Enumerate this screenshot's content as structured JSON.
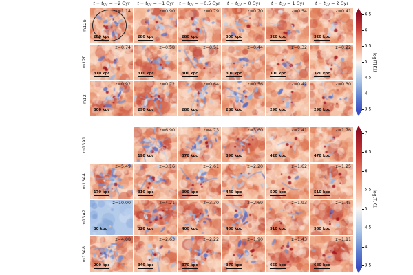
{
  "header": {
    "columns": [
      {
        "pre": "t − t",
        "sub": "CV",
        "post": " = −2 Gyr"
      },
      {
        "pre": "t − t",
        "sub": "CV",
        "post": " = −1 Gyr"
      },
      {
        "pre": "t − t",
        "sub": "CV",
        "post": " = −0.5 Gyr"
      },
      {
        "pre": "t − t",
        "sub": "CV",
        "post": " = 0 Gyr"
      },
      {
        "pre": "t − t",
        "sub": "CV",
        "post": " = 1 Gyr"
      },
      {
        "pre": "t − t",
        "sub": "CV",
        "post": " = 2 Gyr"
      }
    ]
  },
  "groups": [
    {
      "name": "m12",
      "colorbar": {
        "label": "log(T[K])",
        "ticks": [
          "6.5",
          "6",
          "5.5",
          "5",
          "4.5",
          "4",
          "3.5"
        ]
      },
      "rows": [
        {
          "label": "m12b",
          "panels": [
            {
              "z": "z=1.14",
              "scale": "280 kpc",
              "b": 0.35,
              "d": 0.45,
              "circle": true
            },
            {
              "z": "z=0.90",
              "scale": "280 kpc",
              "b": 0.3,
              "d": 0.4
            },
            {
              "z": "z=0.79",
              "scale": "280 kpc",
              "b": 0.28,
              "d": 0.42
            },
            {
              "z": "z=0.70",
              "scale": "300 kpc",
              "b": 0.22,
              "d": 0.5
            },
            {
              "z": "z=0.54",
              "scale": "320 kpc",
              "b": 0.1,
              "d": 0.45
            },
            {
              "z": "z=0.41",
              "scale": "320 kpc",
              "b": 0.08,
              "d": 0.42
            }
          ]
        },
        {
          "label": "m12f",
          "panels": [
            {
              "z": "z=0.74",
              "scale": "310 kpc",
              "b": 0.15,
              "d": 0.5
            },
            {
              "z": "z=0.58",
              "scale": "310 kpc",
              "b": 0.2,
              "d": 0.62
            },
            {
              "z": "z=0.51",
              "scale": "300 kpc",
              "b": 0.25,
              "d": 0.45
            },
            {
              "z": "z=0.44",
              "scale": "300 kpc",
              "b": 0.28,
              "d": 0.4
            },
            {
              "z": "z=0.32",
              "scale": "300 kpc",
              "b": 0.15,
              "d": 0.42
            },
            {
              "z": "z=0.22",
              "scale": "320 kpc",
              "b": 0.1,
              "d": 0.4
            }
          ]
        },
        {
          "label": "m12i",
          "panels": [
            {
              "z": "z=0.92",
              "scale": "300 kpc",
              "b": 0.3,
              "d": 0.5
            },
            {
              "z": "z=0.72",
              "scale": "290 kpc",
              "b": 0.38,
              "d": 0.6
            },
            {
              "z": "z=0.64",
              "scale": "280 kpc",
              "b": 0.42,
              "d": 0.45
            },
            {
              "z": "z=0.56",
              "scale": "280 kpc",
              "b": 0.38,
              "d": 0.4
            },
            {
              "z": "z=0.42",
              "scale": "290 kpc",
              "b": 0.15,
              "d": 0.4
            },
            {
              "z": "z=0.30",
              "scale": "290 kpc",
              "b": 0.15,
              "d": 0.45
            }
          ]
        }
      ]
    },
    {
      "name": "m13",
      "colorbar": {
        "label": "log(T[K])",
        "ticks": [
          "7",
          "6.5",
          "6",
          "5.5",
          "5",
          "4.5",
          "4",
          "3.5"
        ]
      },
      "rows": [
        {
          "label": "m13A1",
          "panels": [
            null,
            {
              "z": "z=6.90",
              "scale": "190 kpc",
              "b": 0.5,
              "d": 0.5
            },
            {
              "z": "z=4.73",
              "scale": "370 kpc",
              "b": 0.42,
              "d": 0.55
            },
            {
              "z": "z=3.60",
              "scale": "390 kpc",
              "b": 0.28,
              "d": 0.7
            },
            {
              "z": "z=2.41",
              "scale": "420 kpc",
              "b": 0.1,
              "d": 0.42
            },
            {
              "z": "z=1.76",
              "scale": "470 kpc",
              "b": 0.06,
              "d": 0.4
            }
          ]
        },
        {
          "label": "m13A4",
          "panels": [
            {
              "z": "z=5.49",
              "scale": "170 kpc",
              "b": 0.55,
              "d": 0.38
            },
            {
              "z": "z=3.16",
              "scale": "310 kpc",
              "b": 0.35,
              "d": 0.5
            },
            {
              "z": "z=2.61",
              "scale": "390 kpc",
              "b": 0.3,
              "d": 0.52
            },
            {
              "z": "z=2.20",
              "scale": "440 kpc",
              "b": 0.22,
              "d": 0.45
            },
            {
              "z": "z=1.62",
              "scale": "500 kpc",
              "b": 0.1,
              "d": 0.5
            },
            {
              "z": "z=1.25",
              "scale": "510 kpc",
              "b": 0.08,
              "d": 0.55
            }
          ]
        },
        {
          "label": "m13A2",
          "panels": [
            {
              "z": "z=10.00",
              "scale": "30 kpc",
              "b": 0.97,
              "d": 0.05
            },
            {
              "z": "z=4.21",
              "scale": "320 kpc",
              "b": 0.35,
              "d": 0.7
            },
            {
              "z": "z=3.30",
              "scale": "400 kpc",
              "b": 0.3,
              "d": 0.75
            },
            {
              "z": "z=2.69",
              "scale": "460 kpc",
              "b": 0.3,
              "d": 0.5
            },
            {
              "z": "z=1.93",
              "scale": "510 kpc",
              "b": 0.1,
              "d": 0.55
            },
            {
              "z": "z=1.45",
              "scale": "560 kpc",
              "b": 0.07,
              "d": 0.6
            }
          ]
        },
        {
          "label": "m13A8",
          "panels": [
            {
              "z": "z=4.08",
              "scale": "200 kpc",
              "b": 0.55,
              "d": 0.4
            },
            {
              "z": "z=2.63",
              "scale": "340 kpc",
              "b": 0.35,
              "d": 0.5
            },
            {
              "z": "z=2.22",
              "scale": "370 kpc",
              "b": 0.25,
              "d": 0.45
            },
            {
              "z": "z=1.90",
              "scale": "370 kpc",
              "b": 0.2,
              "d": 0.55
            },
            {
              "z": "z=1.43",
              "scale": "650 kpc",
              "b": 0.05,
              "d": 0.65
            },
            {
              "z": "z=1.11",
              "scale": "680 kpc",
              "b": 0.05,
              "d": 0.7
            }
          ]
        }
      ]
    }
  ],
  "colors": {
    "cmap_top": "#8f0d22",
    "cmap_red": "#c73a34",
    "cmap_salmon": "#ee9677",
    "cmap_pink": "#f8cdb7",
    "cmap_white": "#f7f5f2",
    "cmap_lightblue": "#a9c4e6",
    "cmap_blue": "#5d7fce",
    "cmap_bottom": "#3b4cc0",
    "annotation": "#222222",
    "text": "#111111"
  },
  "chart_data": {
    "type": "heatmap",
    "columns_time_offsets_gyr": [
      -2,
      -1,
      -0.5,
      0,
      1,
      2
    ],
    "column_header_template": "t − t_CV = {offset} Gyr",
    "rows": [
      "m12b",
      "m12f",
      "m12i",
      "m13A1",
      "m13A4",
      "m13A2",
      "m13A8"
    ],
    "redshifts_by_row": {
      "m12b": [
        1.14,
        0.9,
        0.79,
        0.7,
        0.54,
        0.41
      ],
      "m12f": [
        0.74,
        0.58,
        0.51,
        0.44,
        0.32,
        0.22
      ],
      "m12i": [
        0.92,
        0.72,
        0.64,
        0.56,
        0.42,
        0.3
      ],
      "m13A1": [
        null,
        6.9,
        4.73,
        3.6,
        2.41,
        1.76
      ],
      "m13A4": [
        5.49,
        3.16,
        2.61,
        2.2,
        1.62,
        1.25
      ],
      "m13A2": [
        10.0,
        4.21,
        3.3,
        2.69,
        1.93,
        1.45
      ],
      "m13A8": [
        4.08,
        2.63,
        2.22,
        1.9,
        1.43,
        1.11
      ]
    },
    "scalebar_kpc_by_row": {
      "m12b": [
        280,
        280,
        280,
        300,
        320,
        320
      ],
      "m12f": [
        310,
        310,
        300,
        300,
        300,
        320
      ],
      "m12i": [
        300,
        290,
        280,
        280,
        290,
        290
      ],
      "m13A1": [
        null,
        190,
        370,
        390,
        420,
        470
      ],
      "m13A4": [
        170,
        310,
        390,
        440,
        500,
        510
      ],
      "m13A2": [
        30,
        320,
        400,
        460,
        510,
        560
      ],
      "m13A8": [
        200,
        340,
        370,
        370,
        650,
        680
      ]
    },
    "colorbars": [
      {
        "applies_to_rows": [
          "m12b",
          "m12f",
          "m12i"
        ],
        "label": "log(T[K])",
        "tick_values": [
          6.5,
          6,
          5.5,
          5,
          4.5,
          4,
          3.5
        ],
        "range": [
          3.5,
          6.5
        ]
      },
      {
        "applies_to_rows": [
          "m13A1",
          "m13A4",
          "m13A2",
          "m13A8"
        ],
        "label": "log(T[K])",
        "tick_values": [
          7,
          6.5,
          6,
          5.5,
          5,
          4.5,
          4,
          3.5
        ],
        "range": [
          3.5,
          7
        ]
      }
    ],
    "missing_panels": [
      {
        "row": "m13A1",
        "column_offset_gyr": -2
      }
    ],
    "annotations": [
      {
        "row": "m12b",
        "column_offset_gyr": -2,
        "type": "circle-outline"
      }
    ],
    "colormap": "coolwarm: blue = cold gas, white = intermediate, red = hot gas"
  }
}
